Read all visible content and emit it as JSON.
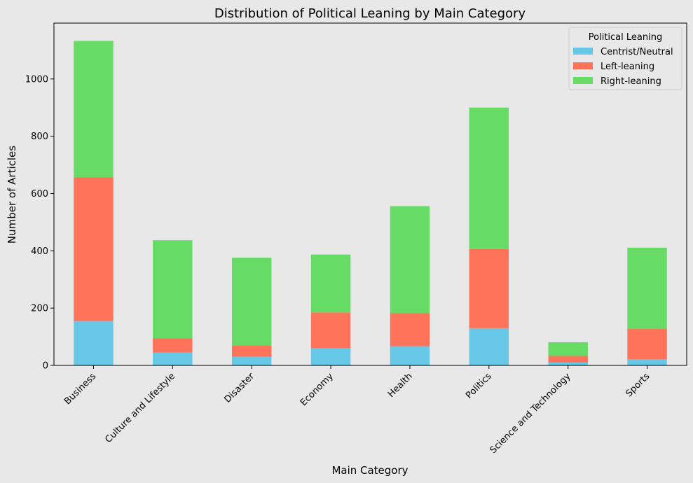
{
  "chart_data": {
    "type": "bar",
    "stacked": true,
    "title": "Distribution of Political Leaning by Main Category",
    "xlabel": "Main Category",
    "ylabel": "Number of Articles",
    "ylim": [
      0,
      1195
    ],
    "yticks": [
      0,
      200,
      400,
      600,
      800,
      1000
    ],
    "grid": false,
    "legend_title": "Political Leaning",
    "legend_position": "top-right",
    "categories": [
      "Business",
      "Culture and Lifestyle",
      "Disaster",
      "Economy",
      "Health",
      "Politics",
      "Science and Technology",
      "Sports"
    ],
    "series": [
      {
        "name": "Centrist/Neutral",
        "color": "#66c8e6",
        "values": [
          155,
          45,
          30,
          60,
          67,
          130,
          10,
          22
        ]
      },
      {
        "name": "Left-leaning",
        "color": "#fe735a",
        "values": [
          502,
          50,
          40,
          125,
          115,
          276,
          23,
          105
        ]
      },
      {
        "name": "Right-leaning",
        "color": "#66dc66",
        "values": [
          476,
          342,
          306,
          202,
          374,
          494,
          48,
          284
        ]
      }
    ]
  }
}
